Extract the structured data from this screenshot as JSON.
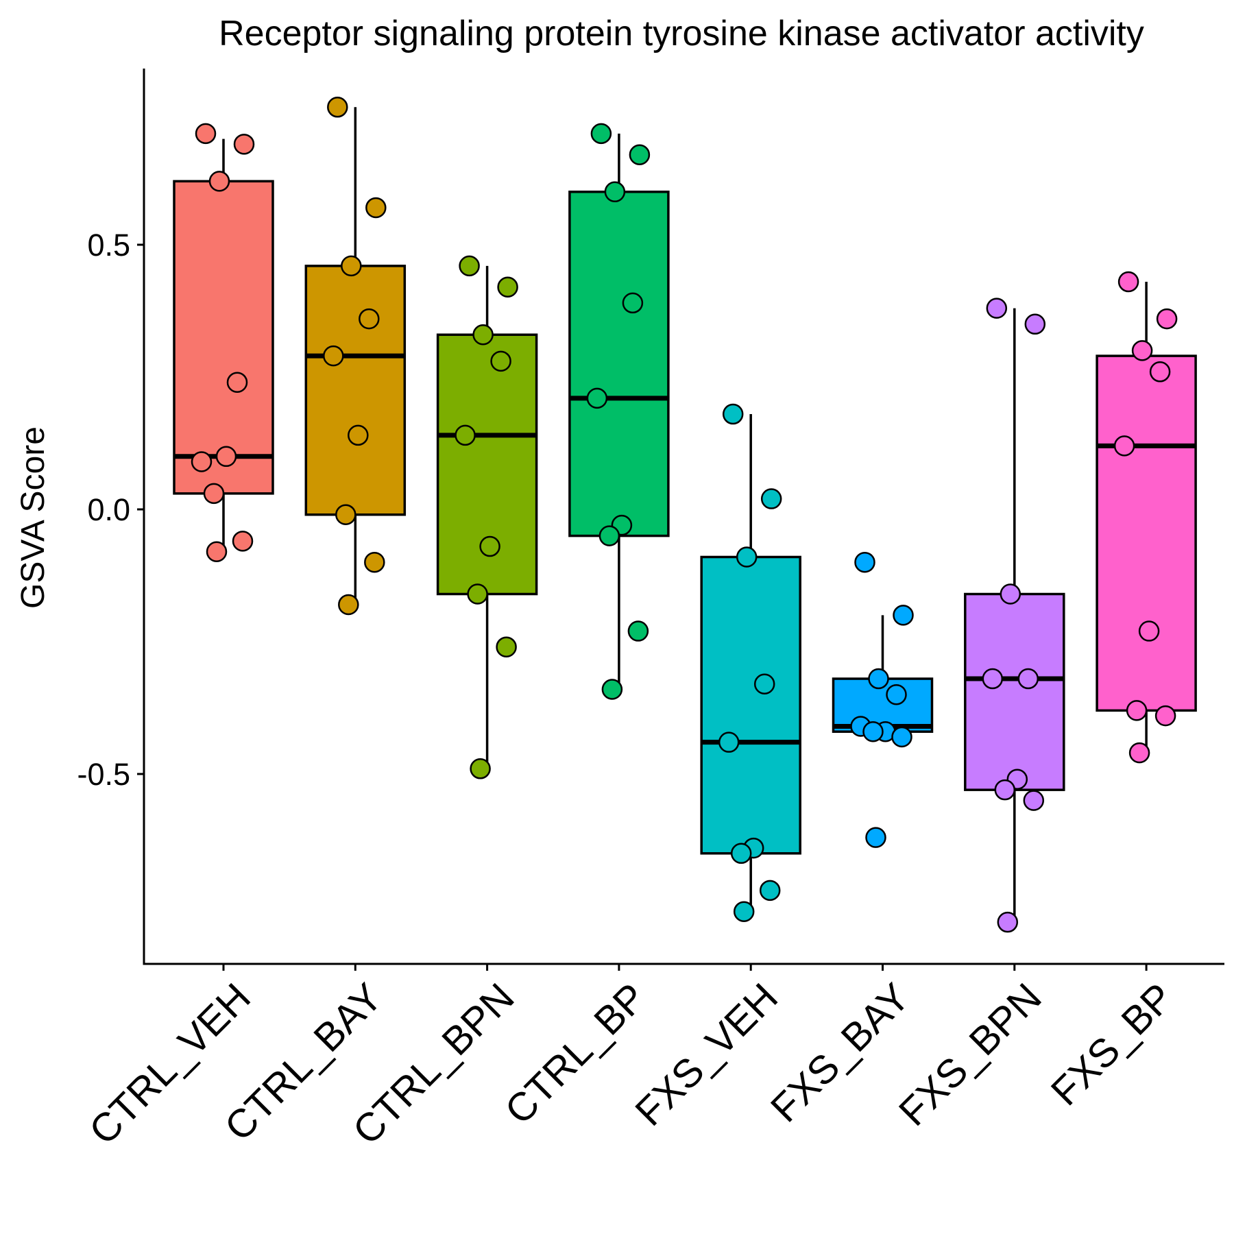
{
  "chart_data": {
    "type": "box",
    "title": "Receptor signaling protein tyrosine kinase activator activity",
    "xlabel": "",
    "ylabel": "GSVA Score",
    "ylim": [
      -0.85,
      0.84
    ],
    "yticks": [
      0.5,
      0.0,
      -0.5
    ],
    "ytick_labels": [
      "0.5",
      "0.0",
      "-0.5"
    ],
    "grid": false,
    "legend": "none",
    "groups": [
      {
        "name": "CTRL_VEH",
        "color": "#F8766D",
        "box": {
          "lower_whisker": -0.08,
          "q1": 0.03,
          "median": 0.1,
          "q3": 0.62,
          "upper_whisker": 0.7
        },
        "points": [
          0.71,
          0.69,
          0.62,
          0.24,
          0.09,
          0.1,
          0.03,
          -0.06,
          -0.08
        ]
      },
      {
        "name": "CTRL_BAY",
        "color": "#CD9600",
        "box": {
          "lower_whisker": -0.18,
          "q1": -0.01,
          "median": 0.29,
          "q3": 0.46,
          "upper_whisker": 0.76
        },
        "points": [
          0.76,
          0.57,
          0.46,
          0.36,
          0.29,
          0.14,
          -0.01,
          -0.1,
          -0.18
        ]
      },
      {
        "name": "CTRL_BPN",
        "color": "#7CAE00",
        "box": {
          "lower_whisker": -0.49,
          "q1": -0.16,
          "median": 0.14,
          "q3": 0.33,
          "upper_whisker": 0.46
        },
        "points": [
          0.46,
          0.42,
          0.33,
          0.28,
          0.14,
          -0.07,
          -0.16,
          -0.26,
          -0.49
        ]
      },
      {
        "name": "CTRL_BP",
        "color": "#00BE67",
        "box": {
          "lower_whisker": -0.34,
          "q1": -0.05,
          "median": 0.21,
          "q3": 0.6,
          "upper_whisker": 0.71
        },
        "points": [
          0.71,
          0.67,
          0.6,
          0.39,
          0.21,
          -0.03,
          -0.05,
          -0.23,
          -0.34
        ]
      },
      {
        "name": "FXS_VEH",
        "color": "#00BFC4",
        "box": {
          "lower_whisker": -0.76,
          "q1": -0.65,
          "median": -0.44,
          "q3": -0.09,
          "upper_whisker": 0.18
        },
        "points": [
          0.18,
          0.02,
          -0.09,
          -0.33,
          -0.44,
          -0.64,
          -0.65,
          -0.72,
          -0.76
        ]
      },
      {
        "name": "FXS_BAY",
        "color": "#00A9FF",
        "box": {
          "lower_whisker": -0.43,
          "q1": -0.42,
          "median": -0.41,
          "q3": -0.32,
          "upper_whisker": -0.2
        },
        "points": [
          -0.1,
          -0.2,
          -0.32,
          -0.35,
          -0.41,
          -0.42,
          -0.42,
          -0.43,
          -0.62
        ]
      },
      {
        "name": "FXS_BPN",
        "color": "#C77CFF",
        "box": {
          "lower_whisker": -0.78,
          "q1": -0.53,
          "median": -0.32,
          "q3": -0.16,
          "upper_whisker": 0.38
        },
        "points": [
          0.38,
          0.35,
          -0.16,
          -0.32,
          -0.32,
          -0.51,
          -0.53,
          -0.55,
          -0.78
        ]
      },
      {
        "name": "FXS_BP",
        "color": "#FF61CC",
        "box": {
          "lower_whisker": -0.46,
          "q1": -0.38,
          "median": 0.12,
          "q3": 0.29,
          "upper_whisker": 0.43
        },
        "points": [
          0.43,
          0.36,
          0.3,
          0.26,
          0.12,
          -0.23,
          -0.38,
          -0.39,
          -0.46
        ]
      }
    ]
  }
}
